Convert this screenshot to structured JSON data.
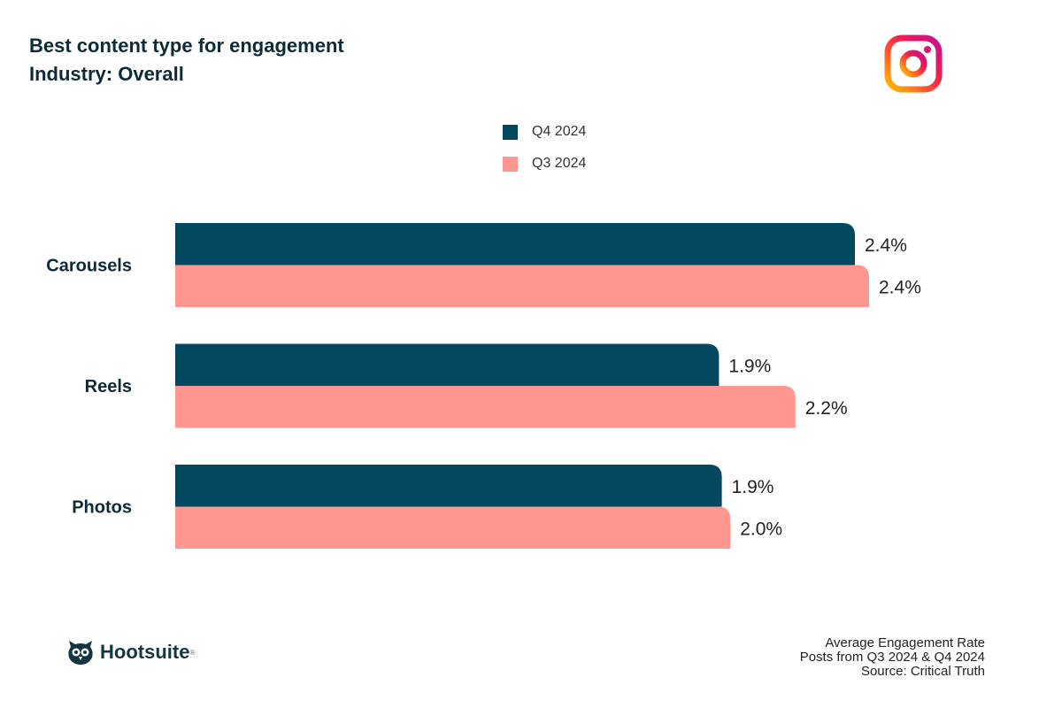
{
  "header": {
    "title": "Best content type for engagement",
    "subtitle": "Industry: Overall",
    "logo": "instagram-logo"
  },
  "colors": {
    "q4": "#034861",
    "q3": "#ff9790",
    "text": "#0d2b36"
  },
  "chart_data": {
    "type": "bar",
    "orientation": "horizontal",
    "categories": [
      "Carousels",
      "Reels",
      "Photos"
    ],
    "series": [
      {
        "name": "Q4 2024",
        "values": [
          2.4,
          1.92,
          1.93
        ],
        "labels": [
          "2.4%",
          "1.9%",
          "1.9%"
        ]
      },
      {
        "name": "Q3 2024",
        "values": [
          2.45,
          2.19,
          1.96
        ],
        "labels": [
          "2.4%",
          "2.2%",
          "2.0%"
        ]
      }
    ],
    "xlim": [
      0,
      2.5
    ],
    "grid": false,
    "legend": "top-center"
  },
  "footer": {
    "lines": [
      "Average Engagement Rate",
      "Posts from Q3 2024 & Q4 2024",
      "Source: Critical Truth"
    ],
    "brand": "Hootsuite",
    "reg": "®"
  }
}
